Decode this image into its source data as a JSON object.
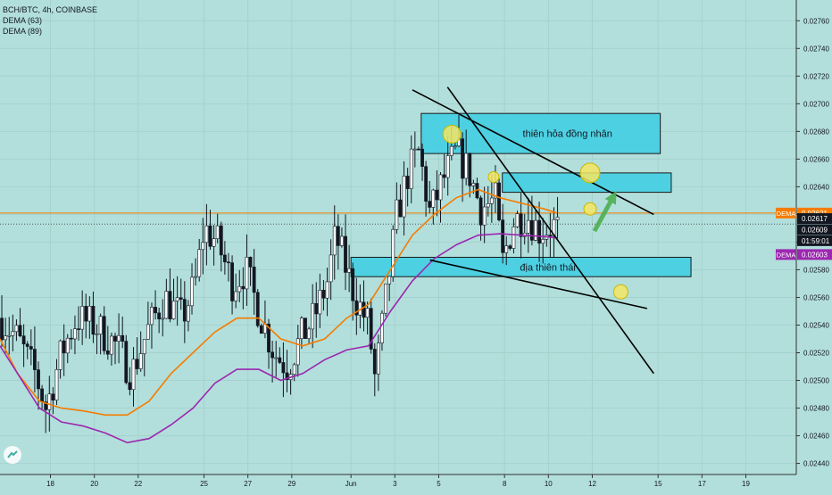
{
  "legend": {
    "symbol": "BCH/BTC, 4h, COINBASE",
    "ind1": "DEMA (63)",
    "ind2": "DEMA (89)"
  },
  "colors": {
    "background": "#b2dfdb",
    "bull": "#ffffff",
    "bear": "#131722",
    "dema63": "#f57c00",
    "dema89": "#9c27b0",
    "zone": "#4dd0e1",
    "circle": "#f5e663",
    "arrow": "#4caf50"
  },
  "chart_data": {
    "type": "candlestick",
    "y_ticks": [
      "0.02760",
      "0.02740",
      "0.02720",
      "0.02700",
      "0.02680",
      "0.02660",
      "0.02640",
      "0.02620",
      "0.02600",
      "0.02580",
      "0.02560",
      "0.02540",
      "0.02520",
      "0.02500",
      "0.02480",
      "0.02460",
      "0.02440"
    ],
    "ylim": [
      0.02432,
      0.02775
    ],
    "x_ticks": [
      {
        "label": "18",
        "day": 18
      },
      {
        "label": "20",
        "day": 20
      },
      {
        "label": "22",
        "day": 22
      },
      {
        "label": "25",
        "day": 25
      },
      {
        "label": "27",
        "day": 27
      },
      {
        "label": "29",
        "day": 29
      },
      {
        "label": "Jun",
        "day": 31.7
      },
      {
        "label": "3",
        "day": 33.7
      },
      {
        "label": "5",
        "day": 35.7
      },
      {
        "label": "8",
        "day": 38.7
      },
      {
        "label": "10",
        "day": 40.7
      },
      {
        "label": "12",
        "day": 42.7
      },
      {
        "label": "15",
        "day": 45.7
      },
      {
        "label": "17",
        "day": 47.7
      },
      {
        "label": "19",
        "day": 49.7
      }
    ],
    "xlim": [
      15.7,
      52.0
    ],
    "close_path": [
      [
        15.7,
        0.02545
      ],
      [
        16.5,
        0.0253
      ],
      [
        17.3,
        0.02505
      ],
      [
        17.8,
        0.0248
      ],
      [
        18.5,
        0.0252
      ],
      [
        19.2,
        0.02545
      ],
      [
        20.0,
        0.0254
      ],
      [
        21.0,
        0.02525
      ],
      [
        21.7,
        0.02505
      ],
      [
        22.4,
        0.02535
      ],
      [
        23.2,
        0.0256
      ],
      [
        24.0,
        0.02545
      ],
      [
        24.6,
        0.0257
      ],
      [
        25.0,
        0.0261
      ],
      [
        25.6,
        0.026
      ],
      [
        26.3,
        0.0257
      ],
      [
        26.9,
        0.0258
      ],
      [
        27.5,
        0.0255
      ],
      [
        28.2,
        0.0252
      ],
      [
        28.8,
        0.0251
      ],
      [
        29.4,
        0.0253
      ],
      [
        30.0,
        0.02545
      ],
      [
        30.6,
        0.0257
      ],
      [
        31.0,
        0.02605
      ],
      [
        31.5,
        0.0258
      ],
      [
        31.9,
        0.0256
      ],
      [
        32.5,
        0.0254
      ],
      [
        32.8,
        0.025
      ],
      [
        33.3,
        0.0256
      ],
      [
        33.8,
        0.0262
      ],
      [
        34.3,
        0.0265
      ],
      [
        34.8,
        0.02665
      ],
      [
        35.3,
        0.0262
      ],
      [
        35.9,
        0.02645
      ],
      [
        36.5,
        0.02665
      ],
      [
        37.1,
        0.0265
      ],
      [
        37.6,
        0.02625
      ],
      [
        38.3,
        0.0263
      ],
      [
        38.6,
        0.02585
      ],
      [
        39.1,
        0.02615
      ],
      [
        39.7,
        0.0262
      ],
      [
        40.3,
        0.02608
      ],
      [
        40.9,
        0.02612
      ],
      [
        41.1,
        0.02609
      ]
    ],
    "series": [
      {
        "name": "DEMA (63)",
        "points": [
          [
            15.7,
            0.0253
          ],
          [
            16.5,
            0.02505
          ],
          [
            17.5,
            0.02485
          ],
          [
            18.5,
            0.0248
          ],
          [
            19.5,
            0.02478
          ],
          [
            20.5,
            0.02475
          ],
          [
            21.5,
            0.02475
          ],
          [
            22.5,
            0.02485
          ],
          [
            23.5,
            0.02505
          ],
          [
            24.5,
            0.0252
          ],
          [
            25.5,
            0.02535
          ],
          [
            26.5,
            0.02545
          ],
          [
            27.5,
            0.02545
          ],
          [
            28.5,
            0.0253
          ],
          [
            29.5,
            0.02525
          ],
          [
            30.5,
            0.0253
          ],
          [
            31.5,
            0.02545
          ],
          [
            32.5,
            0.02555
          ],
          [
            33.5,
            0.0258
          ],
          [
            34.5,
            0.02605
          ],
          [
            35.5,
            0.0262
          ],
          [
            36.5,
            0.02632
          ],
          [
            37.5,
            0.02638
          ],
          [
            38.5,
            0.02632
          ],
          [
            39.5,
            0.02628
          ],
          [
            40.5,
            0.02624
          ],
          [
            41.1,
            0.02621
          ]
        ]
      },
      {
        "name": "DEMA (89)",
        "points": [
          [
            15.7,
            0.02525
          ],
          [
            16.5,
            0.02505
          ],
          [
            17.5,
            0.0248
          ],
          [
            18.5,
            0.0247
          ],
          [
            19.5,
            0.02467
          ],
          [
            20.5,
            0.02462
          ],
          [
            21.5,
            0.02455
          ],
          [
            22.5,
            0.02458
          ],
          [
            23.5,
            0.02468
          ],
          [
            24.5,
            0.0248
          ],
          [
            25.5,
            0.02498
          ],
          [
            26.5,
            0.02508
          ],
          [
            27.5,
            0.02508
          ],
          [
            28.5,
            0.025
          ],
          [
            29.5,
            0.02505
          ],
          [
            30.5,
            0.02515
          ],
          [
            31.5,
            0.02522
          ],
          [
            32.5,
            0.02525
          ],
          [
            33.5,
            0.0255
          ],
          [
            34.5,
            0.02572
          ],
          [
            35.5,
            0.02588
          ],
          [
            36.5,
            0.02598
          ],
          [
            37.5,
            0.02605
          ],
          [
            38.5,
            0.02606
          ],
          [
            39.5,
            0.02605
          ],
          [
            40.5,
            0.02604
          ],
          [
            41.1,
            0.02603
          ]
        ]
      }
    ],
    "price_tags": [
      {
        "name": "DEMA",
        "value": "0.02621",
        "price": 0.02621,
        "color": "#f57c00"
      },
      {
        "name": "",
        "value": "0.02617",
        "price": 0.02617,
        "color": "#131722"
      },
      {
        "name": "",
        "value": "0.02609",
        "price": 0.02609,
        "color": "#131722"
      },
      {
        "name": "",
        "value": "01:59:01",
        "price": 0.02601,
        "color": "#131722"
      },
      {
        "name": "DEMA",
        "value": "0.02603",
        "price": 0.02591,
        "color": "#9c27b0"
      }
    ],
    "hlines": [
      {
        "price": 0.02621,
        "color": "#f57c00",
        "style": "solid"
      },
      {
        "price": 0.02613,
        "color": "#555555",
        "style": "dotted"
      }
    ],
    "zones": [
      {
        "label": "thiên hỏa đồng nhân",
        "x0": 34.9,
        "x1": 45.8,
        "p0": 0.02693,
        "p1": 0.02664
      },
      {
        "label": "",
        "x0": 38.6,
        "x1": 46.3,
        "p0": 0.0265,
        "p1": 0.02636
      },
      {
        "label": "địa thiên thái",
        "x0": 31.7,
        "x1": 47.2,
        "p0": 0.02589,
        "p1": 0.02575
      }
    ],
    "trendlines": [
      {
        "x0": 34.5,
        "p0": 0.0271,
        "x1": 45.5,
        "p1": 0.0262
      },
      {
        "x0": 36.1,
        "p0": 0.02712,
        "x1": 45.5,
        "p1": 0.02505
      },
      {
        "x0": 35.3,
        "p0": 0.02587,
        "x1": 45.2,
        "p1": 0.02552
      }
    ],
    "circles": [
      {
        "x": 36.3,
        "p": 0.02678,
        "r": 10
      },
      {
        "x": 38.2,
        "p": 0.02647,
        "r": 6
      },
      {
        "x": 42.6,
        "p": 0.0265,
        "r": 11
      },
      {
        "x": 42.6,
        "p": 0.02624,
        "r": 7
      },
      {
        "x": 44.0,
        "p": 0.02564,
        "r": 8
      }
    ],
    "arrow": {
      "x0": 42.8,
      "p0": 0.02608,
      "x1": 43.8,
      "p1": 0.02637
    }
  }
}
